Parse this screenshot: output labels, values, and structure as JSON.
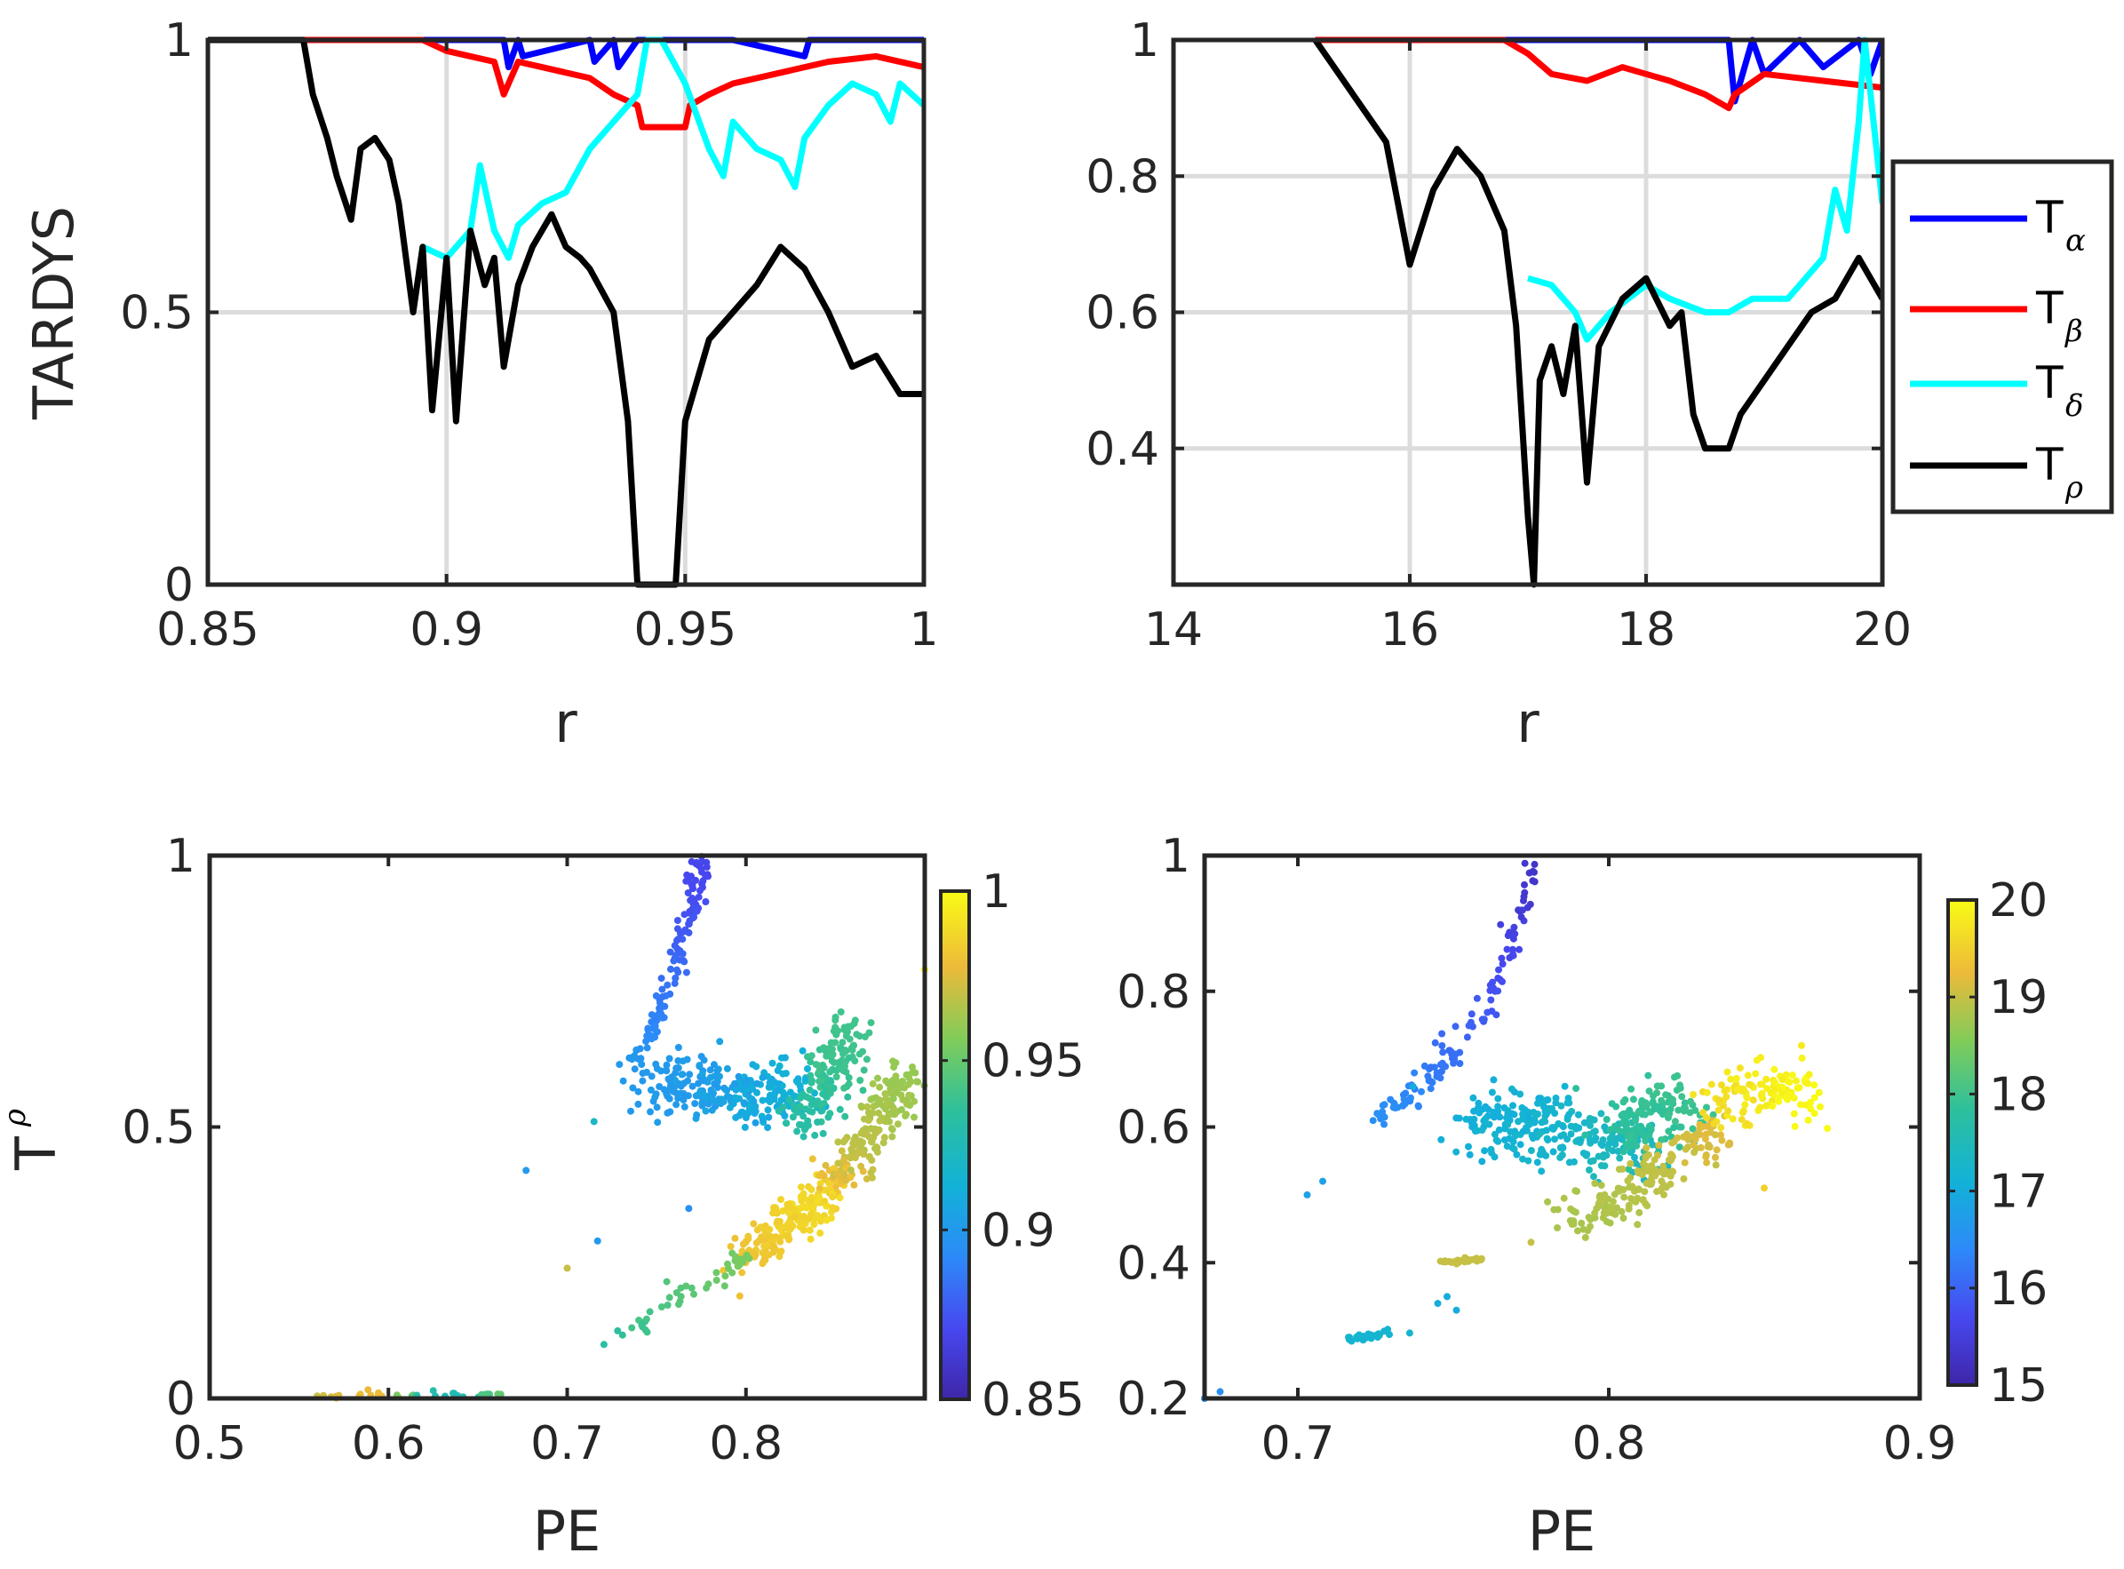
{
  "colors": {
    "alpha": "#0000ff",
    "beta": "#ff0000",
    "delta": "#00ffff",
    "rho": "#000000",
    "grid": "#dcdcdc",
    "axis": "#262626"
  },
  "legend": {
    "entries": [
      {
        "base": "T",
        "sub": "α"
      },
      {
        "base": "T",
        "sub": "β"
      },
      {
        "base": "T",
        "sub": "δ"
      },
      {
        "base": "T",
        "sub": "ρ"
      }
    ]
  },
  "chart_data": [
    {
      "id": "top-left",
      "type": "line",
      "title": "",
      "xlabel": "r",
      "ylabel": "TARDYS",
      "xlim": [
        0.85,
        1
      ],
      "ylim": [
        0,
        1
      ],
      "xticks": [
        0.85,
        0.9,
        0.95,
        1
      ],
      "xtick_labels": [
        "0.85",
        "0.9",
        "0.95",
        "1"
      ],
      "yticks": [
        0,
        0.5,
        1
      ],
      "ytick_labels": [
        "0",
        "0.5",
        "1"
      ],
      "grid": true,
      "series": [
        {
          "name": "T_alpha",
          "x": [
            0.85,
            0.87,
            0.9,
            0.912,
            0.913,
            0.915,
            0.916,
            0.93,
            0.931,
            0.935,
            0.936,
            0.94,
            0.95,
            0.96,
            0.975,
            0.976,
            0.99,
            1.0
          ],
          "y": [
            1,
            1,
            1,
            1,
            0.95,
            1,
            0.97,
            1,
            0.96,
            1,
            0.95,
            1,
            1,
            1,
            0.97,
            1,
            1,
            1
          ]
        },
        {
          "name": "T_beta",
          "x": [
            0.85,
            0.87,
            0.895,
            0.9,
            0.91,
            0.912,
            0.915,
            0.92,
            0.93,
            0.935,
            0.94,
            0.941,
            0.95,
            0.951,
            0.955,
            0.96,
            0.97,
            0.98,
            0.99,
            1.0
          ],
          "y": [
            1,
            1,
            1,
            0.98,
            0.96,
            0.9,
            0.96,
            0.95,
            0.93,
            0.9,
            0.88,
            0.84,
            0.84,
            0.88,
            0.9,
            0.92,
            0.94,
            0.96,
            0.97,
            0.95
          ]
        },
        {
          "name": "T_delta",
          "x": [
            0.895,
            0.9,
            0.905,
            0.907,
            0.91,
            0.913,
            0.915,
            0.92,
            0.925,
            0.93,
            0.935,
            0.94,
            0.942,
            0.945,
            0.95,
            0.955,
            0.958,
            0.96,
            0.965,
            0.97,
            0.973,
            0.975,
            0.98,
            0.985,
            0.99,
            0.993,
            0.995,
            1.0
          ],
          "y": [
            0.62,
            0.6,
            0.65,
            0.77,
            0.65,
            0.6,
            0.66,
            0.7,
            0.72,
            0.8,
            0.85,
            0.9,
            1.0,
            1.0,
            0.92,
            0.8,
            0.75,
            0.85,
            0.8,
            0.78,
            0.73,
            0.82,
            0.88,
            0.92,
            0.9,
            0.85,
            0.92,
            0.88
          ]
        },
        {
          "name": "T_rho",
          "x": [
            0.85,
            0.87,
            0.872,
            0.875,
            0.877,
            0.88,
            0.882,
            0.885,
            0.888,
            0.89,
            0.893,
            0.895,
            0.897,
            0.9,
            0.902,
            0.905,
            0.908,
            0.91,
            0.912,
            0.915,
            0.918,
            0.92,
            0.922,
            0.925,
            0.928,
            0.93,
            0.935,
            0.938,
            0.94,
            0.945,
            0.948,
            0.95,
            0.955,
            0.96,
            0.965,
            0.97,
            0.975,
            0.98,
            0.985,
            0.99,
            0.995,
            1.0
          ],
          "y": [
            1,
            1,
            0.9,
            0.82,
            0.75,
            0.67,
            0.8,
            0.82,
            0.78,
            0.7,
            0.5,
            0.62,
            0.32,
            0.6,
            0.3,
            0.65,
            0.55,
            0.6,
            0.4,
            0.55,
            0.62,
            0.65,
            0.68,
            0.62,
            0.6,
            0.58,
            0.5,
            0.3,
            0.0,
            0.0,
            0.0,
            0.3,
            0.45,
            0.5,
            0.55,
            0.62,
            0.58,
            0.5,
            0.4,
            0.42,
            0.35,
            0.35
          ]
        }
      ]
    },
    {
      "id": "top-right",
      "type": "line",
      "title": "",
      "xlabel": "r",
      "ylabel": "",
      "xlim": [
        14,
        20
      ],
      "ylim": [
        0.2,
        1
      ],
      "xticks": [
        14,
        16,
        18,
        20
      ],
      "xtick_labels": [
        "14",
        "16",
        "18",
        "20"
      ],
      "yticks": [
        0.4,
        0.6,
        0.8,
        1
      ],
      "ytick_labels": [
        "0.4",
        "0.6",
        "0.8",
        "1"
      ],
      "grid": true,
      "series": [
        {
          "name": "T_alpha",
          "x": [
            15.2,
            16,
            17,
            18,
            18.5,
            18.7,
            18.75,
            18.9,
            19.0,
            19.3,
            19.5,
            19.8,
            19.9,
            20.0
          ],
          "y": [
            1,
            1,
            1,
            1,
            1,
            1,
            0.91,
            1,
            0.95,
            1,
            0.96,
            1,
            0.95,
            1
          ]
        },
        {
          "name": "T_beta",
          "x": [
            15.2,
            16,
            16.8,
            17.0,
            17.2,
            17.5,
            17.8,
            18.0,
            18.2,
            18.5,
            18.7,
            18.75,
            19.0,
            19.5,
            20.0
          ],
          "y": [
            1,
            1,
            1,
            0.98,
            0.95,
            0.94,
            0.96,
            0.95,
            0.94,
            0.92,
            0.9,
            0.92,
            0.95,
            0.94,
            0.93
          ]
        },
        {
          "name": "T_delta",
          "x": [
            17.0,
            17.2,
            17.4,
            17.5,
            17.7,
            18.0,
            18.2,
            18.5,
            18.7,
            18.9,
            19.2,
            19.5,
            19.6,
            19.7,
            19.8,
            19.85,
            20.0
          ],
          "y": [
            0.65,
            0.64,
            0.6,
            0.56,
            0.6,
            0.64,
            0.62,
            0.6,
            0.6,
            0.62,
            0.62,
            0.68,
            0.78,
            0.72,
            0.88,
            1.0,
            0.76
          ]
        },
        {
          "name": "T_rho",
          "x": [
            15.2,
            15.4,
            15.6,
            15.8,
            16.0,
            16.2,
            16.4,
            16.6,
            16.8,
            16.9,
            17.0,
            17.05,
            17.1,
            17.2,
            17.3,
            17.4,
            17.5,
            17.6,
            17.8,
            18.0,
            18.2,
            18.3,
            18.4,
            18.5,
            18.7,
            18.8,
            19.0,
            19.2,
            19.4,
            19.6,
            19.8,
            20.0
          ],
          "y": [
            1,
            0.95,
            0.9,
            0.85,
            0.67,
            0.78,
            0.84,
            0.8,
            0.72,
            0.58,
            0.3,
            0.2,
            0.5,
            0.55,
            0.48,
            0.58,
            0.35,
            0.55,
            0.62,
            0.65,
            0.58,
            0.6,
            0.45,
            0.4,
            0.4,
            0.45,
            0.5,
            0.55,
            0.6,
            0.62,
            0.68,
            0.62
          ]
        }
      ]
    },
    {
      "id": "bottom-left",
      "type": "scatter",
      "title": "",
      "xlabel": "PE",
      "ylabel": "T_rho",
      "ylabel_base": "T",
      "ylabel_sup": "ρ",
      "xlim": [
        0.5,
        0.9
      ],
      "ylim": [
        0,
        1
      ],
      "xticks": [
        0.5,
        0.6,
        0.7,
        0.8
      ],
      "xtick_labels": [
        "0.5",
        "0.6",
        "0.7",
        "0.8"
      ],
      "yticks": [
        0,
        0.5,
        1
      ],
      "ytick_labels": [
        "0",
        "0.5",
        "1"
      ],
      "grid": false,
      "colorbar": {
        "clim": [
          0.85,
          1
        ],
        "ticks": [
          0.85,
          0.9,
          0.95,
          1
        ],
        "tick_labels": [
          "0.85",
          "0.9",
          "0.95",
          "1"
        ]
      },
      "clusters": [
        {
          "name": "upper-arc",
          "x": [
            0.735,
            0.742,
            0.75,
            0.757,
            0.763,
            0.768,
            0.771,
            0.774,
            0.775
          ],
          "y": [
            0.62,
            0.65,
            0.7,
            0.76,
            0.82,
            0.88,
            0.93,
            0.97,
            1.0
          ],
          "c": [
            0.9,
            0.895,
            0.89,
            0.885,
            0.88,
            0.875,
            0.872,
            0.87,
            0.87
          ],
          "spread": [
            0.003,
            0.01
          ],
          "n": 130
        },
        {
          "name": "mid-cloud",
          "x": [
            0.75,
            0.77,
            0.79,
            0.81,
            0.825
          ],
          "y": [
            0.59,
            0.58,
            0.56,
            0.55,
            0.58
          ],
          "c": [
            0.9,
            0.9,
            0.905,
            0.91,
            0.915
          ],
          "spread": [
            0.012,
            0.025
          ],
          "n": 260
        },
        {
          "name": "green-wedge",
          "x": [
            0.83,
            0.84,
            0.85,
            0.855
          ],
          "y": [
            0.5,
            0.56,
            0.62,
            0.68
          ],
          "c": [
            0.93,
            0.935,
            0.94,
            0.94
          ],
          "spread": [
            0.007,
            0.025
          ],
          "n": 160
        },
        {
          "name": "yellow-band",
          "x": [
            0.8,
            0.82,
            0.84,
            0.86,
            0.875,
            0.89
          ],
          "y": [
            0.26,
            0.31,
            0.36,
            0.44,
            0.52,
            0.6
          ],
          "c": [
            0.98,
            0.985,
            0.99,
            0.97,
            0.965,
            0.96
          ],
          "spread": [
            0.006,
            0.02
          ],
          "n": 380
        },
        {
          "name": "lower-trail",
          "x": [
            0.72,
            0.74,
            0.76,
            0.78,
            0.8
          ],
          "y": [
            0.1,
            0.14,
            0.18,
            0.22,
            0.26
          ],
          "c": [
            0.93,
            0.94,
            0.945,
            0.95,
            0.955
          ],
          "spread": [
            0.004,
            0.01
          ],
          "n": 45
        },
        {
          "name": "zero-line",
          "x": [
            0.56,
            0.58,
            0.6,
            0.62,
            0.64,
            0.66
          ],
          "y": [
            0.005,
            0.005,
            0.005,
            0.005,
            0.005,
            0.005
          ],
          "c": [
            0.97,
            0.98,
            0.975,
            0.93,
            0.925,
            0.95
          ],
          "spread": [
            0.004,
            0.004
          ],
          "n": 40
        },
        {
          "name": "outliers",
          "x": [
            0.677,
            0.717,
            0.768,
            0.715,
            0.9,
            0.7
          ],
          "y": [
            0.42,
            0.29,
            0.35,
            0.51,
            0.79,
            0.24
          ],
          "c": [
            0.9,
            0.9,
            0.895,
            0.92,
            1.0,
            0.97
          ],
          "spread": [
            0.001,
            0.001
          ],
          "n": 6
        }
      ]
    },
    {
      "id": "bottom-right",
      "type": "scatter",
      "title": "",
      "xlabel": "PE",
      "ylabel": "",
      "xlim": [
        0.67,
        0.9
      ],
      "ylim": [
        0.2,
        1
      ],
      "xticks": [
        0.7,
        0.8,
        0.9
      ],
      "xtick_labels": [
        "0.7",
        "0.8",
        "0.9"
      ],
      "yticks": [
        0.2,
        0.4,
        0.6,
        0.8,
        1
      ],
      "ytick_labels": [
        "0.2",
        "0.4",
        "0.6",
        "0.8",
        "1"
      ],
      "grid": false,
      "colorbar": {
        "clim": [
          15,
          20
        ],
        "ticks": [
          15,
          16,
          17,
          18,
          19,
          20
        ],
        "tick_labels": [
          "15",
          "16",
          "17",
          "18",
          "19",
          "20"
        ]
      },
      "clusters": [
        {
          "name": "upper-arc",
          "x": [
            0.725,
            0.735,
            0.745,
            0.755,
            0.763,
            0.769,
            0.773,
            0.775
          ],
          "y": [
            0.61,
            0.64,
            0.68,
            0.74,
            0.8,
            0.87,
            0.93,
            1.0
          ],
          "c": [
            16.5,
            16.4,
            16.2,
            16.0,
            15.8,
            15.6,
            15.4,
            15.3
          ],
          "spread": [
            0.002,
            0.01
          ],
          "n": 130
        },
        {
          "name": "mid-cloud",
          "x": [
            0.76,
            0.775,
            0.79,
            0.805
          ],
          "y": [
            0.62,
            0.6,
            0.58,
            0.57
          ],
          "c": [
            17.0,
            17.2,
            17.3,
            17.5
          ],
          "spread": [
            0.009,
            0.025
          ],
          "n": 260
        },
        {
          "name": "green-cloud",
          "x": [
            0.805,
            0.815,
            0.825
          ],
          "y": [
            0.59,
            0.62,
            0.64
          ],
          "c": [
            17.8,
            17.9,
            18.0
          ],
          "spread": [
            0.006,
            0.025
          ],
          "n": 140
        },
        {
          "name": "orange-band",
          "x": [
            0.79,
            0.805,
            0.82,
            0.835
          ],
          "y": [
            0.46,
            0.5,
            0.55,
            0.6
          ],
          "c": [
            18.8,
            18.9,
            19.0,
            19.2
          ],
          "spread": [
            0.005,
            0.015
          ],
          "n": 180
        },
        {
          "name": "yellow-cap",
          "x": [
            0.835,
            0.845,
            0.855,
            0.862
          ],
          "y": [
            0.62,
            0.65,
            0.67,
            0.63
          ],
          "c": [
            19.6,
            19.8,
            19.9,
            20.0
          ],
          "spread": [
            0.005,
            0.02
          ],
          "n": 120
        },
        {
          "name": "low-segment",
          "x": [
            0.745,
            0.75,
            0.755,
            0.76
          ],
          "y": [
            0.4,
            0.401,
            0.403,
            0.405
          ],
          "c": [
            19.0,
            19.0,
            19.0,
            19.0
          ],
          "spread": [
            0.002,
            0.002
          ],
          "n": 30
        },
        {
          "name": "lower-segment",
          "x": [
            0.715,
            0.72,
            0.725,
            0.73
          ],
          "y": [
            0.287,
            0.29,
            0.294,
            0.298
          ],
          "c": [
            17.2,
            17.2,
            17.2,
            17.2
          ],
          "spread": [
            0.002,
            0.002
          ],
          "n": 25
        },
        {
          "name": "outliers",
          "x": [
            0.703,
            0.708,
            0.67,
            0.675,
            0.745,
            0.748,
            0.751,
            0.85,
            0.862,
            0.775
          ],
          "y": [
            0.5,
            0.52,
            0.2,
            0.21,
            0.34,
            0.35,
            0.33,
            0.51,
            0.72,
            0.43
          ],
          "c": [
            16.8,
            16.8,
            16.5,
            16.5,
            17.0,
            17.0,
            17.0,
            19.5,
            19.8,
            19.0
          ],
          "spread": [
            0.001,
            0.001
          ],
          "n": 10
        }
      ]
    }
  ]
}
